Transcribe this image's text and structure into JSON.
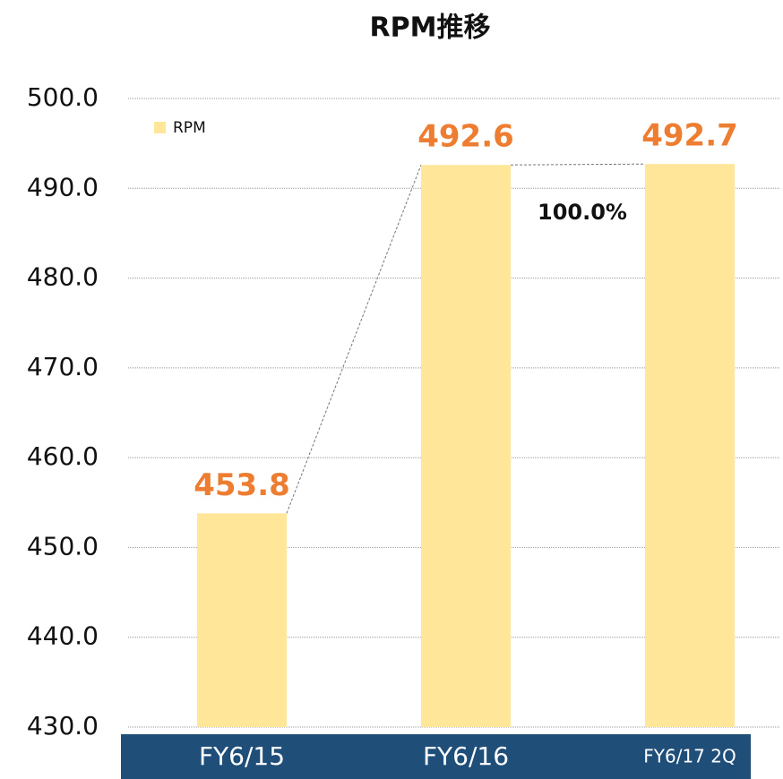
{
  "chart_data": {
    "type": "bar",
    "title": "RPM推移",
    "categories": [
      "FY6/15",
      "FY6/16",
      "FY6/17 2Q"
    ],
    "series": [
      {
        "name": "RPM",
        "color": "#ffe699",
        "values": [
          453.8,
          492.6,
          492.7
        ]
      }
    ],
    "ylim": [
      430,
      500
    ],
    "yticks": [
      {
        "value": 430,
        "label": "430.0"
      },
      {
        "value": 440,
        "label": "440.0"
      },
      {
        "value": 450,
        "label": "450.0"
      },
      {
        "value": 460,
        "label": "460.0"
      },
      {
        "value": 470,
        "label": "470.0"
      },
      {
        "value": 480,
        "label": "480.0"
      },
      {
        "value": 490,
        "label": "490.0"
      },
      {
        "value": 500,
        "label": "500.0"
      }
    ],
    "grid": true,
    "legend": "upper left",
    "value_label_color": "#ed7d31",
    "annotations": [
      "100.0%"
    ]
  }
}
